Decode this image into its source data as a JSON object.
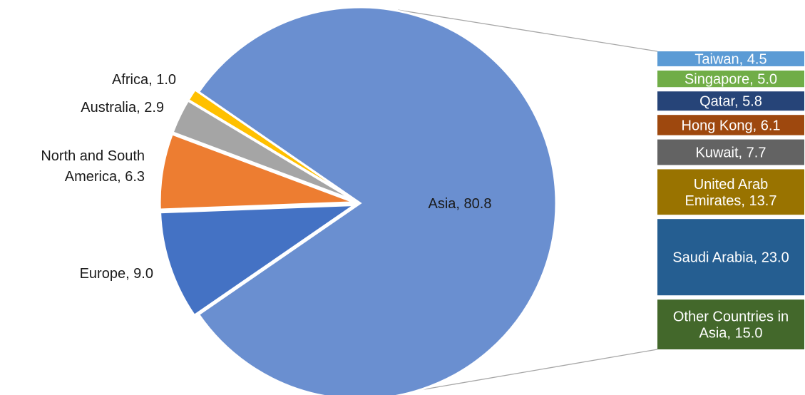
{
  "chart_data": {
    "type": "pie",
    "title": "",
    "slices": [
      {
        "label": "Africa",
        "value": 1.0,
        "color": "#FFC000"
      },
      {
        "label": "Australia",
        "value": 2.9,
        "color": "#A5A5A5"
      },
      {
        "label": "North and South America",
        "value": 6.3,
        "color": "#ED7D31"
      },
      {
        "label": "Europe",
        "value": 9.0,
        "color": "#4472C4"
      },
      {
        "label": "Asia",
        "value": 80.8,
        "color": "#6A8FD0"
      }
    ],
    "breakdown": {
      "of": "Asia",
      "type": "stacked-bar",
      "items": [
        {
          "label": "Taiwan",
          "value": 4.5,
          "color": "#5B9BD5"
        },
        {
          "label": "Singapore",
          "value": 5.0,
          "color": "#70AD47"
        },
        {
          "label": "Qatar",
          "value": 5.8,
          "color": "#264478"
        },
        {
          "label": "Hong Kong",
          "value": 6.1,
          "color": "#9E480E"
        },
        {
          "label": "Kuwait",
          "value": 7.7,
          "color": "#636363"
        },
        {
          "label": "United Arab Emirates",
          "value": 13.7,
          "color": "#997300"
        },
        {
          "label": "Saudi Arabia",
          "value": 23.0,
          "color": "#255E91"
        },
        {
          "label": "Other Countries in Asia",
          "value": 15.0,
          "color": "#43682B"
        }
      ]
    },
    "labels": {
      "Africa": [
        "Africa, 1.0"
      ],
      "Australia": [
        "Australia, 2.9"
      ],
      "North and South America": [
        "North and South",
        "America, 6.3"
      ],
      "Europe": [
        "Europe, 9.0"
      ],
      "Asia": [
        "Asia, 80.8"
      ],
      "Taiwan": [
        "Taiwan, 4.5"
      ],
      "Singapore": [
        "Singapore, 5.0"
      ],
      "Qatar": [
        "Qatar, 5.8"
      ],
      "Hong Kong": [
        "Hong Kong, 6.1"
      ],
      "Kuwait": [
        "Kuwait, 7.7"
      ],
      "United Arab Emirates": [
        "United Arab",
        "Emirates, 13.7"
      ],
      "Saudi Arabia": [
        "Saudi Arabia, 23.0"
      ],
      "Other Countries in Asia": [
        "Other Countries in",
        "Asia, 15.0"
      ]
    }
  }
}
